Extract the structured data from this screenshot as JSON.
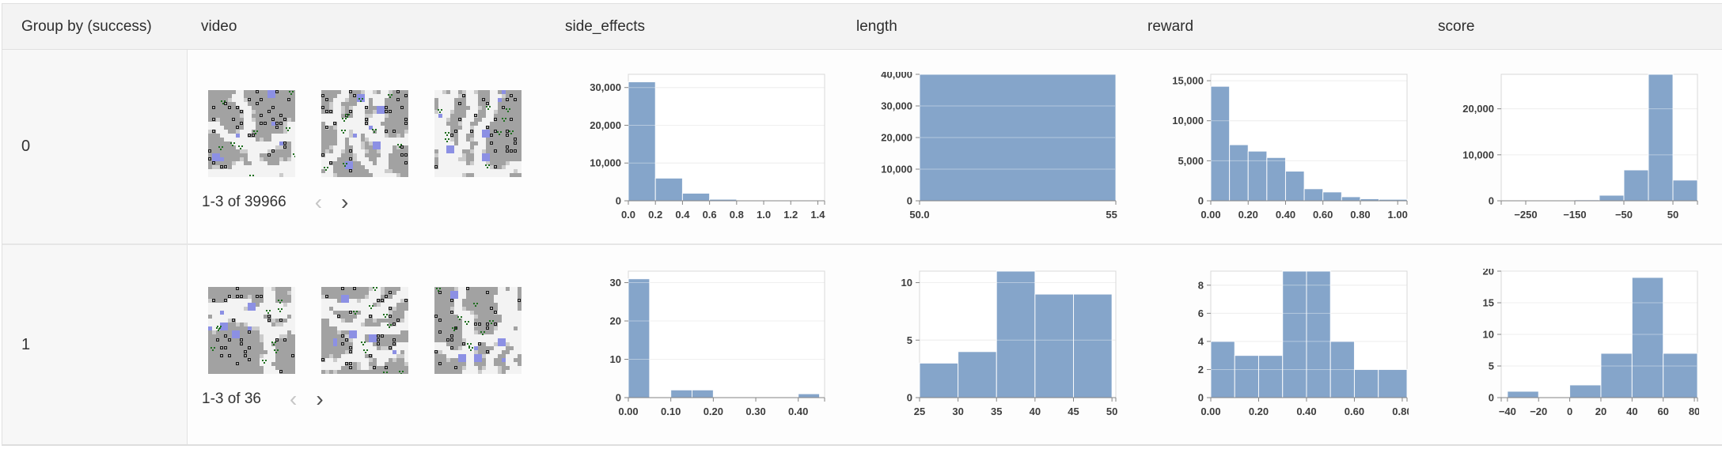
{
  "header": {
    "columns": [
      "Group by (success)",
      "video",
      "side_effects",
      "length",
      "reward",
      "score"
    ]
  },
  "rows": [
    {
      "group_value": "0",
      "video": {
        "thumbnail_count": 3,
        "pagination_label": "1-3 of 39966",
        "prev_enabled": false,
        "next_enabled": true
      }
    },
    {
      "group_value": "1",
      "video": {
        "thumbnail_count": 3,
        "pagination_label": "1-3 of 36",
        "prev_enabled": false,
        "next_enabled": true
      }
    }
  ],
  "icons": {
    "chevron_left": "‹",
    "chevron_right": "›"
  },
  "colors": {
    "bar": "#7c9ec6",
    "header_bg": "#f3f3f3",
    "group_cell_bg": "#f7f7f7",
    "border": "#e0e0e0",
    "grid": "#e4e4e4",
    "axis": "#858585"
  },
  "chart_data": [
    {
      "type": "bar",
      "group": "0",
      "column": "side_effects",
      "x_domain": [
        0,
        1.45
      ],
      "ymax": 33500,
      "grid": true,
      "bars": [
        {
          "x0": 0.0,
          "x1": 0.2,
          "count": 31500
        },
        {
          "x0": 0.2,
          "x1": 0.4,
          "count": 6000
        },
        {
          "x0": 0.4,
          "x1": 0.6,
          "count": 2000
        },
        {
          "x0": 0.6,
          "x1": 0.8,
          "count": 400
        },
        {
          "x0": 0.8,
          "x1": 1.0,
          "count": 80
        }
      ],
      "y_ticks": [
        {
          "v": 0,
          "label": "0"
        },
        {
          "v": 10000,
          "label": "10,000"
        },
        {
          "v": 20000,
          "label": "20,000"
        },
        {
          "v": 30000,
          "label": "30,000"
        }
      ],
      "x_ticks": [
        {
          "v": 0.0,
          "label": "0.0"
        },
        {
          "v": 0.2,
          "label": "0.2"
        },
        {
          "v": 0.4,
          "label": "0.4"
        },
        {
          "v": 0.6,
          "label": "0.6"
        },
        {
          "v": 0.8,
          "label": "0.8"
        },
        {
          "v": 1.0,
          "label": "1.0"
        },
        {
          "v": 1.2,
          "label": "1.2"
        },
        {
          "v": 1.4,
          "label": "1.4"
        }
      ]
    },
    {
      "type": "bar",
      "group": "0",
      "column": "length",
      "x_domain": [
        50,
        55
      ],
      "ymax": 40000,
      "grid": true,
      "bars": [
        {
          "x0": 50,
          "x1": 55,
          "count": 40000
        }
      ],
      "y_ticks": [
        {
          "v": 0,
          "label": "0"
        },
        {
          "v": 10000,
          "label": "10,000"
        },
        {
          "v": 20000,
          "label": "20,000"
        },
        {
          "v": 30000,
          "label": "30,000"
        },
        {
          "v": 40000,
          "label": "40,000"
        }
      ],
      "x_ticks": [
        {
          "v": 50,
          "label": "50.0"
        },
        {
          "v": 55,
          "label": "55.0"
        }
      ]
    },
    {
      "type": "bar",
      "group": "0",
      "column": "reward",
      "x_domain": [
        0,
        1.05
      ],
      "ymax": 15800,
      "grid": true,
      "bars": [
        {
          "x0": 0.0,
          "x1": 0.1,
          "count": 14300
        },
        {
          "x0": 0.1,
          "x1": 0.2,
          "count": 7000
        },
        {
          "x0": 0.2,
          "x1": 0.3,
          "count": 6200
        },
        {
          "x0": 0.3,
          "x1": 0.4,
          "count": 5400
        },
        {
          "x0": 0.4,
          "x1": 0.5,
          "count": 3700
        },
        {
          "x0": 0.5,
          "x1": 0.6,
          "count": 1500
        },
        {
          "x0": 0.6,
          "x1": 0.7,
          "count": 1100
        },
        {
          "x0": 0.7,
          "x1": 0.8,
          "count": 500
        },
        {
          "x0": 0.8,
          "x1": 0.9,
          "count": 250
        },
        {
          "x0": 0.9,
          "x1": 1.05,
          "count": 180
        }
      ],
      "y_ticks": [
        {
          "v": 0,
          "label": "0"
        },
        {
          "v": 5000,
          "label": "5,000"
        },
        {
          "v": 10000,
          "label": "10,000"
        },
        {
          "v": 15000,
          "label": "15,000"
        }
      ],
      "x_ticks": [
        {
          "v": 0.0,
          "label": "0.00"
        },
        {
          "v": 0.2,
          "label": "0.20"
        },
        {
          "v": 0.4,
          "label": "0.40"
        },
        {
          "v": 0.6,
          "label": "0.60"
        },
        {
          "v": 0.8,
          "label": "0.80"
        },
        {
          "v": 1.0,
          "label": "1.00"
        }
      ]
    },
    {
      "type": "bar",
      "group": "0",
      "column": "score",
      "x_domain": [
        -300,
        100
      ],
      "ymax": 27500,
      "grid": true,
      "bars": [
        {
          "x0": -300,
          "x1": -250,
          "count": 60
        },
        {
          "x0": -250,
          "x1": -200,
          "count": 90
        },
        {
          "x0": -200,
          "x1": -150,
          "count": 110
        },
        {
          "x0": -150,
          "x1": -100,
          "count": 200
        },
        {
          "x0": -100,
          "x1": -50,
          "count": 1200
        },
        {
          "x0": -50,
          "x1": 0,
          "count": 6700
        },
        {
          "x0": 0,
          "x1": 50,
          "count": 27500
        },
        {
          "x0": 50,
          "x1": 100,
          "count": 4500
        }
      ],
      "y_ticks": [
        {
          "v": 0,
          "label": "0"
        },
        {
          "v": 10000,
          "label": "10,000"
        },
        {
          "v": 20000,
          "label": "20,000"
        }
      ],
      "x_ticks": [
        {
          "v": -250,
          "label": "−250"
        },
        {
          "v": -150,
          "label": "−150"
        },
        {
          "v": -50,
          "label": "−50"
        },
        {
          "v": 50,
          "label": "50"
        }
      ]
    },
    {
      "type": "bar",
      "group": "1",
      "column": "side_effects",
      "x_domain": [
        0,
        0.462
      ],
      "ymax": 33,
      "grid": true,
      "bars": [
        {
          "x0": 0.0,
          "x1": 0.05,
          "count": 31
        },
        {
          "x0": 0.1,
          "x1": 0.15,
          "count": 2
        },
        {
          "x0": 0.15,
          "x1": 0.2,
          "count": 2
        },
        {
          "x0": 0.4,
          "x1": 0.45,
          "count": 1
        }
      ],
      "y_ticks": [
        {
          "v": 0,
          "label": "0"
        },
        {
          "v": 10,
          "label": "10"
        },
        {
          "v": 20,
          "label": "20"
        },
        {
          "v": 30,
          "label": "30"
        }
      ],
      "x_ticks": [
        {
          "v": 0.0,
          "label": "0.00"
        },
        {
          "v": 0.1,
          "label": "0.10"
        },
        {
          "v": 0.2,
          "label": "0.20"
        },
        {
          "v": 0.3,
          "label": "0.30"
        },
        {
          "v": 0.4,
          "label": "0.40"
        }
      ]
    },
    {
      "type": "bar",
      "group": "1",
      "column": "length",
      "x_domain": [
        25,
        50.5
      ],
      "ymax": 11,
      "grid": true,
      "bars": [
        {
          "x0": 25,
          "x1": 30,
          "count": 3
        },
        {
          "x0": 30,
          "x1": 35,
          "count": 4
        },
        {
          "x0": 35,
          "x1": 40,
          "count": 11
        },
        {
          "x0": 40,
          "x1": 45,
          "count": 9
        },
        {
          "x0": 45,
          "x1": 50,
          "count": 9
        }
      ],
      "y_ticks": [
        {
          "v": 0,
          "label": "0"
        },
        {
          "v": 5,
          "label": "5"
        },
        {
          "v": 10,
          "label": "10"
        }
      ],
      "x_ticks": [
        {
          "v": 25,
          "label": "25"
        },
        {
          "v": 30,
          "label": "30"
        },
        {
          "v": 35,
          "label": "35"
        },
        {
          "v": 40,
          "label": "40"
        },
        {
          "v": 45,
          "label": "45"
        },
        {
          "v": 50,
          "label": "50"
        }
      ]
    },
    {
      "type": "bar",
      "group": "1",
      "column": "reward",
      "x_domain": [
        0,
        0.82
      ],
      "ymax": 9,
      "grid": true,
      "bars": [
        {
          "x0": 0.0,
          "x1": 0.1,
          "count": 4
        },
        {
          "x0": 0.1,
          "x1": 0.2,
          "count": 3
        },
        {
          "x0": 0.2,
          "x1": 0.3,
          "count": 3
        },
        {
          "x0": 0.3,
          "x1": 0.4,
          "count": 9
        },
        {
          "x0": 0.4,
          "x1": 0.5,
          "count": 9
        },
        {
          "x0": 0.5,
          "x1": 0.6,
          "count": 4
        },
        {
          "x0": 0.6,
          "x1": 0.7,
          "count": 2
        },
        {
          "x0": 0.7,
          "x1": 0.82,
          "count": 2
        }
      ],
      "y_ticks": [
        {
          "v": 0,
          "label": "0"
        },
        {
          "v": 2,
          "label": "2"
        },
        {
          "v": 4,
          "label": "4"
        },
        {
          "v": 6,
          "label": "6"
        },
        {
          "v": 8,
          "label": "8"
        }
      ],
      "x_ticks": [
        {
          "v": 0.0,
          "label": "0.00"
        },
        {
          "v": 0.2,
          "label": "0.20"
        },
        {
          "v": 0.4,
          "label": "0.40"
        },
        {
          "v": 0.6,
          "label": "0.60"
        },
        {
          "v": 0.8,
          "label": "0.80"
        }
      ]
    },
    {
      "type": "bar",
      "group": "1",
      "column": "score",
      "x_domain": [
        -44,
        82
      ],
      "ymax": 20,
      "grid": true,
      "bars": [
        {
          "x0": -40,
          "x1": -20,
          "count": 1
        },
        {
          "x0": 0,
          "x1": 20,
          "count": 2
        },
        {
          "x0": 20,
          "x1": 40,
          "count": 7
        },
        {
          "x0": 40,
          "x1": 60,
          "count": 19
        },
        {
          "x0": 60,
          "x1": 82,
          "count": 7
        }
      ],
      "y_ticks": [
        {
          "v": 0,
          "label": "0"
        },
        {
          "v": 5,
          "label": "5"
        },
        {
          "v": 10,
          "label": "10"
        },
        {
          "v": 15,
          "label": "15"
        },
        {
          "v": 20,
          "label": "20"
        }
      ],
      "x_ticks": [
        {
          "v": -40,
          "label": "−40"
        },
        {
          "v": -20,
          "label": "−20"
        },
        {
          "v": 0,
          "label": "0"
        },
        {
          "v": 20,
          "label": "20"
        },
        {
          "v": 40,
          "label": "40"
        },
        {
          "v": 60,
          "label": "60"
        },
        {
          "v": 80,
          "label": "80"
        }
      ]
    }
  ]
}
